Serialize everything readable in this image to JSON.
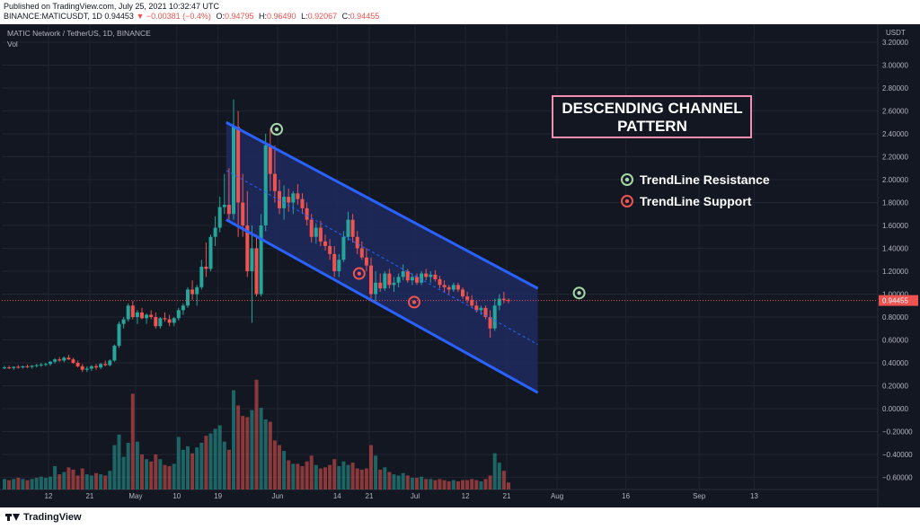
{
  "header": {
    "published": "Published on TradingView.com, July 25, 2021 10:32:47 UTC",
    "symbol_line": "BINANCE:MATICUSDT, 1D",
    "last": "0.94453",
    "change": "−0.00381 (−0.4%)",
    "o_label": "O:",
    "o_value": "0.94795",
    "h_label": "H:",
    "h_value": "0.96490",
    "l_label": "L:",
    "l_value": "0.92067",
    "c_label": "C:",
    "c_value": "0.94455"
  },
  "chart_header": {
    "title": "MATIC Network / TetherUS, 1D, BINANCE",
    "vol_label": "Vol"
  },
  "footer": {
    "brand": "TradingView"
  },
  "colors": {
    "background": "#131722",
    "up": "#26a69a",
    "down": "#ef5350",
    "channel_line": "#2962ff",
    "channel_fill": "#1e2a5e",
    "grid": "#1f2433",
    "axis_text": "#b2b5be",
    "price_tag": "#ef5350",
    "resistance_marker": "#a5d6a7",
    "support_marker": "#ef5350",
    "annotation_text": "#ffffff",
    "annotation_box_border": "#f48fb1"
  },
  "chart_data": {
    "type": "candlestick",
    "title": "MATIC Network / TetherUS, 1D, BINANCE",
    "currency": "USDT",
    "ylim": [
      -0.6,
      3.2
    ],
    "price_ticks": [
      "3.20000",
      "3.00000",
      "2.80000",
      "2.60000",
      "2.40000",
      "2.20000",
      "2.00000",
      "1.80000",
      "1.60000",
      "1.40000",
      "1.20000",
      "1.00000",
      "0.80000",
      "0.60000",
      "0.40000",
      "0.20000",
      "0.00000",
      "−0.20000",
      "−0.40000",
      "−0.60000"
    ],
    "price_tick_values": [
      3.2,
      3.0,
      2.8,
      2.6,
      2.4,
      2.2,
      2.0,
      1.8,
      1.6,
      1.4,
      1.2,
      1.0,
      0.8,
      0.6,
      0.4,
      0.2,
      0.0,
      -0.2,
      -0.4,
      -0.6
    ],
    "current_price": {
      "value": 0.94455,
      "label": "0.94455"
    },
    "time_ticks": [
      {
        "label": "12",
        "day": 0
      },
      {
        "label": "21",
        "day": 9
      },
      {
        "label": "May",
        "day": 19
      },
      {
        "label": "10",
        "day": 28
      },
      {
        "label": "19",
        "day": 37
      },
      {
        "label": "Jun",
        "day": 50
      },
      {
        "label": "14",
        "day": 63
      },
      {
        "label": "21",
        "day": 70
      },
      {
        "label": "Jul",
        "day": 80
      },
      {
        "label": "12",
        "day": 91
      },
      {
        "label": "21",
        "day": 100
      },
      {
        "label": "Aug",
        "day": 111
      },
      {
        "label": "16",
        "day": 126
      },
      {
        "label": "Sep",
        "day": 142
      },
      {
        "label": "13",
        "day": 154
      }
    ],
    "candles": [
      {
        "o": 0.36,
        "h": 0.375,
        "l": 0.345,
        "c": 0.36,
        "v": 0.09
      },
      {
        "o": 0.36,
        "h": 0.375,
        "l": 0.345,
        "c": 0.355,
        "v": 0.08
      },
      {
        "o": 0.355,
        "h": 0.37,
        "l": 0.34,
        "c": 0.365,
        "v": 0.09
      },
      {
        "o": 0.365,
        "h": 0.38,
        "l": 0.35,
        "c": 0.36,
        "v": 0.1
      },
      {
        "o": 0.36,
        "h": 0.375,
        "l": 0.35,
        "c": 0.37,
        "v": 0.09
      },
      {
        "o": 0.37,
        "h": 0.385,
        "l": 0.355,
        "c": 0.365,
        "v": 0.08
      },
      {
        "o": 0.365,
        "h": 0.38,
        "l": 0.35,
        "c": 0.375,
        "v": 0.09
      },
      {
        "o": 0.375,
        "h": 0.39,
        "l": 0.36,
        "c": 0.38,
        "v": 0.1
      },
      {
        "o": 0.38,
        "h": 0.4,
        "l": 0.365,
        "c": 0.385,
        "v": 0.11
      },
      {
        "o": 0.385,
        "h": 0.4,
        "l": 0.37,
        "c": 0.39,
        "v": 0.1
      },
      {
        "o": 0.39,
        "h": 0.415,
        "l": 0.375,
        "c": 0.41,
        "v": 0.11
      },
      {
        "o": 0.41,
        "h": 0.44,
        "l": 0.395,
        "c": 0.43,
        "v": 0.2
      },
      {
        "o": 0.43,
        "h": 0.45,
        "l": 0.41,
        "c": 0.42,
        "v": 0.13
      },
      {
        "o": 0.42,
        "h": 0.455,
        "l": 0.405,
        "c": 0.445,
        "v": 0.15
      },
      {
        "o": 0.445,
        "h": 0.47,
        "l": 0.425,
        "c": 0.43,
        "v": 0.19
      },
      {
        "o": 0.43,
        "h": 0.445,
        "l": 0.39,
        "c": 0.4,
        "v": 0.17
      },
      {
        "o": 0.4,
        "h": 0.42,
        "l": 0.36,
        "c": 0.37,
        "v": 0.12
      },
      {
        "o": 0.37,
        "h": 0.39,
        "l": 0.32,
        "c": 0.34,
        "v": 0.18
      },
      {
        "o": 0.34,
        "h": 0.37,
        "l": 0.32,
        "c": 0.35,
        "v": 0.13
      },
      {
        "o": 0.35,
        "h": 0.38,
        "l": 0.33,
        "c": 0.37,
        "v": 0.12
      },
      {
        "o": 0.37,
        "h": 0.39,
        "l": 0.34,
        "c": 0.36,
        "v": 0.14
      },
      {
        "o": 0.36,
        "h": 0.4,
        "l": 0.345,
        "c": 0.39,
        "v": 0.13
      },
      {
        "o": 0.39,
        "h": 0.42,
        "l": 0.37,
        "c": 0.38,
        "v": 0.12
      },
      {
        "o": 0.38,
        "h": 0.43,
        "l": 0.37,
        "c": 0.42,
        "v": 0.16
      },
      {
        "o": 0.42,
        "h": 0.56,
        "l": 0.41,
        "c": 0.55,
        "v": 0.38
      },
      {
        "o": 0.55,
        "h": 0.76,
        "l": 0.53,
        "c": 0.74,
        "v": 0.47
      },
      {
        "o": 0.74,
        "h": 0.8,
        "l": 0.7,
        "c": 0.78,
        "v": 0.28
      },
      {
        "o": 0.78,
        "h": 0.92,
        "l": 0.76,
        "c": 0.9,
        "v": 0.4
      },
      {
        "o": 0.9,
        "h": 0.94,
        "l": 0.78,
        "c": 0.8,
        "v": 0.82
      },
      {
        "o": 0.8,
        "h": 0.86,
        "l": 0.74,
        "c": 0.84,
        "v": 0.41
      },
      {
        "o": 0.84,
        "h": 0.88,
        "l": 0.78,
        "c": 0.79,
        "v": 0.3
      },
      {
        "o": 0.79,
        "h": 0.83,
        "l": 0.74,
        "c": 0.82,
        "v": 0.26
      },
      {
        "o": 0.82,
        "h": 0.86,
        "l": 0.78,
        "c": 0.8,
        "v": 0.24
      },
      {
        "o": 0.8,
        "h": 0.84,
        "l": 0.7,
        "c": 0.72,
        "v": 0.3
      },
      {
        "o": 0.72,
        "h": 0.8,
        "l": 0.7,
        "c": 0.79,
        "v": 0.26
      },
      {
        "o": 0.79,
        "h": 0.84,
        "l": 0.76,
        "c": 0.78,
        "v": 0.21
      },
      {
        "o": 0.78,
        "h": 0.82,
        "l": 0.72,
        "c": 0.75,
        "v": 0.2
      },
      {
        "o": 0.75,
        "h": 0.8,
        "l": 0.72,
        "c": 0.79,
        "v": 0.22
      },
      {
        "o": 0.79,
        "h": 0.88,
        "l": 0.77,
        "c": 0.86,
        "v": 0.45
      },
      {
        "o": 0.86,
        "h": 0.92,
        "l": 0.82,
        "c": 0.9,
        "v": 0.34
      },
      {
        "o": 0.9,
        "h": 1.06,
        "l": 0.88,
        "c": 1.04,
        "v": 0.37
      },
      {
        "o": 1.04,
        "h": 1.12,
        "l": 0.95,
        "c": 1.0,
        "v": 0.31
      },
      {
        "o": 1.0,
        "h": 1.08,
        "l": 0.9,
        "c": 1.06,
        "v": 0.36
      },
      {
        "o": 1.06,
        "h": 1.3,
        "l": 1.04,
        "c": 1.24,
        "v": 0.4
      },
      {
        "o": 1.24,
        "h": 1.45,
        "l": 1.15,
        "c": 1.22,
        "v": 0.46
      },
      {
        "o": 1.22,
        "h": 1.52,
        "l": 1.2,
        "c": 1.5,
        "v": 0.48
      },
      {
        "o": 1.5,
        "h": 1.68,
        "l": 1.42,
        "c": 1.58,
        "v": 0.52
      },
      {
        "o": 1.58,
        "h": 1.85,
        "l": 1.54,
        "c": 1.76,
        "v": 0.55
      },
      {
        "o": 1.76,
        "h": 2.05,
        "l": 1.7,
        "c": 1.78,
        "v": 0.41
      },
      {
        "o": 1.78,
        "h": 2.1,
        "l": 1.65,
        "c": 1.7,
        "v": 0.34
      },
      {
        "o": 1.7,
        "h": 2.7,
        "l": 1.65,
        "c": 2.46,
        "v": 0.85
      },
      {
        "o": 2.46,
        "h": 2.6,
        "l": 1.5,
        "c": 1.8,
        "v": 0.72
      },
      {
        "o": 1.8,
        "h": 2.05,
        "l": 1.5,
        "c": 1.6,
        "v": 0.63
      },
      {
        "o": 1.6,
        "h": 1.9,
        "l": 1.15,
        "c": 1.2,
        "v": 0.62
      },
      {
        "o": 1.2,
        "h": 1.6,
        "l": 0.75,
        "c": 1.4,
        "v": 0.68
      },
      {
        "o": 1.4,
        "h": 1.52,
        "l": 0.98,
        "c": 1.0,
        "v": 0.94
      },
      {
        "o": 1.0,
        "h": 1.7,
        "l": 0.98,
        "c": 1.6,
        "v": 0.7
      },
      {
        "o": 1.6,
        "h": 2.4,
        "l": 1.55,
        "c": 2.3,
        "v": 0.6
      },
      {
        "o": 2.3,
        "h": 2.45,
        "l": 1.9,
        "c": 2.05,
        "v": 0.58
      },
      {
        "o": 2.05,
        "h": 2.3,
        "l": 1.8,
        "c": 1.9,
        "v": 0.42
      },
      {
        "o": 1.9,
        "h": 2.0,
        "l": 1.7,
        "c": 1.75,
        "v": 0.38
      },
      {
        "o": 1.75,
        "h": 1.95,
        "l": 1.65,
        "c": 1.85,
        "v": 0.33
      },
      {
        "o": 1.85,
        "h": 1.92,
        "l": 1.72,
        "c": 1.8,
        "v": 0.25
      },
      {
        "o": 1.8,
        "h": 1.9,
        "l": 1.7,
        "c": 1.88,
        "v": 0.22
      },
      {
        "o": 1.88,
        "h": 1.96,
        "l": 1.78,
        "c": 1.83,
        "v": 0.22
      },
      {
        "o": 1.83,
        "h": 1.88,
        "l": 1.7,
        "c": 1.75,
        "v": 0.2
      },
      {
        "o": 1.75,
        "h": 1.8,
        "l": 1.6,
        "c": 1.65,
        "v": 0.24
      },
      {
        "o": 1.65,
        "h": 1.7,
        "l": 1.45,
        "c": 1.5,
        "v": 0.29
      },
      {
        "o": 1.5,
        "h": 1.62,
        "l": 1.44,
        "c": 1.58,
        "v": 0.21
      },
      {
        "o": 1.58,
        "h": 1.64,
        "l": 1.42,
        "c": 1.46,
        "v": 0.18
      },
      {
        "o": 1.46,
        "h": 1.52,
        "l": 1.38,
        "c": 1.42,
        "v": 0.19
      },
      {
        "o": 1.42,
        "h": 1.48,
        "l": 1.3,
        "c": 1.35,
        "v": 0.21
      },
      {
        "o": 1.35,
        "h": 1.42,
        "l": 1.15,
        "c": 1.2,
        "v": 0.26
      },
      {
        "o": 1.2,
        "h": 1.35,
        "l": 1.15,
        "c": 1.3,
        "v": 0.2
      },
      {
        "o": 1.3,
        "h": 1.55,
        "l": 1.28,
        "c": 1.5,
        "v": 0.24
      },
      {
        "o": 1.5,
        "h": 1.72,
        "l": 1.47,
        "c": 1.65,
        "v": 0.21
      },
      {
        "o": 1.65,
        "h": 1.7,
        "l": 1.45,
        "c": 1.5,
        "v": 0.23
      },
      {
        "o": 1.5,
        "h": 1.55,
        "l": 1.35,
        "c": 1.4,
        "v": 0.18
      },
      {
        "o": 1.4,
        "h": 1.46,
        "l": 1.3,
        "c": 1.32,
        "v": 0.17
      },
      {
        "o": 1.32,
        "h": 1.4,
        "l": 1.2,
        "c": 1.25,
        "v": 0.18
      },
      {
        "o": 1.25,
        "h": 1.32,
        "l": 0.95,
        "c": 1.0,
        "v": 0.38
      },
      {
        "o": 1.0,
        "h": 1.2,
        "l": 0.94,
        "c": 1.1,
        "v": 0.29
      },
      {
        "o": 1.1,
        "h": 1.18,
        "l": 1.02,
        "c": 1.05,
        "v": 0.17
      },
      {
        "o": 1.05,
        "h": 1.2,
        "l": 1.03,
        "c": 1.18,
        "v": 0.19
      },
      {
        "o": 1.18,
        "h": 1.22,
        "l": 1.05,
        "c": 1.08,
        "v": 0.15
      },
      {
        "o": 1.08,
        "h": 1.15,
        "l": 1.02,
        "c": 1.1,
        "v": 0.13
      },
      {
        "o": 1.1,
        "h": 1.18,
        "l": 1.06,
        "c": 1.15,
        "v": 0.12
      },
      {
        "o": 1.15,
        "h": 1.26,
        "l": 1.12,
        "c": 1.2,
        "v": 0.14
      },
      {
        "o": 1.2,
        "h": 1.22,
        "l": 1.1,
        "c": 1.12,
        "v": 0.12
      },
      {
        "o": 1.12,
        "h": 1.18,
        "l": 1.08,
        "c": 1.15,
        "v": 0.1
      },
      {
        "o": 1.15,
        "h": 1.18,
        "l": 1.08,
        "c": 1.1,
        "v": 0.1
      },
      {
        "o": 1.1,
        "h": 1.2,
        "l": 1.08,
        "c": 1.18,
        "v": 0.11
      },
      {
        "o": 1.18,
        "h": 1.22,
        "l": 1.12,
        "c": 1.15,
        "v": 0.09
      },
      {
        "o": 1.15,
        "h": 1.2,
        "l": 1.1,
        "c": 1.17,
        "v": 0.09
      },
      {
        "o": 1.17,
        "h": 1.21,
        "l": 1.11,
        "c": 1.13,
        "v": 0.08
      },
      {
        "o": 1.13,
        "h": 1.16,
        "l": 1.05,
        "c": 1.08,
        "v": 0.09
      },
      {
        "o": 1.08,
        "h": 1.12,
        "l": 1.02,
        "c": 1.06,
        "v": 0.08
      },
      {
        "o": 1.06,
        "h": 1.08,
        "l": 1.0,
        "c": 1.04,
        "v": 0.07
      },
      {
        "o": 1.04,
        "h": 1.1,
        "l": 1.02,
        "c": 1.08,
        "v": 0.08
      },
      {
        "o": 1.08,
        "h": 1.1,
        "l": 1.02,
        "c": 1.04,
        "v": 0.07
      },
      {
        "o": 1.04,
        "h": 1.06,
        "l": 0.96,
        "c": 0.98,
        "v": 0.08
      },
      {
        "o": 0.98,
        "h": 1.02,
        "l": 0.92,
        "c": 0.95,
        "v": 0.08
      },
      {
        "o": 0.95,
        "h": 0.99,
        "l": 0.88,
        "c": 0.9,
        "v": 0.09
      },
      {
        "o": 0.9,
        "h": 0.94,
        "l": 0.84,
        "c": 0.86,
        "v": 0.08
      },
      {
        "o": 0.86,
        "h": 0.9,
        "l": 0.82,
        "c": 0.88,
        "v": 0.07
      },
      {
        "o": 0.88,
        "h": 0.9,
        "l": 0.78,
        "c": 0.8,
        "v": 0.09
      },
      {
        "o": 0.8,
        "h": 0.86,
        "l": 0.62,
        "c": 0.7,
        "v": 0.12
      },
      {
        "o": 0.7,
        "h": 0.96,
        "l": 0.68,
        "c": 0.9,
        "v": 0.31
      },
      {
        "o": 0.9,
        "h": 1.0,
        "l": 0.86,
        "c": 0.96,
        "v": 0.23
      },
      {
        "o": 0.96,
        "h": 1.02,
        "l": 0.92,
        "c": 0.948,
        "v": 0.16
      },
      {
        "o": 0.948,
        "h": 0.965,
        "l": 0.921,
        "c": 0.945,
        "v": 0.06
      }
    ],
    "channel": {
      "upper": [
        [
          58,
          2.5
        ],
        [
          126,
          1.05
        ]
      ],
      "lower": [
        [
          58,
          1.65
        ],
        [
          126,
          0.14
        ]
      ],
      "mid": [
        [
          58,
          2.08
        ],
        [
          126,
          0.56
        ]
      ]
    },
    "annotations": {
      "box_lines": [
        "DESCENDING CHANNEL",
        "PATTERN"
      ],
      "legend": [
        {
          "label": "TrendLine Resistance",
          "color": "#a5d6a7"
        },
        {
          "label": "TrendLine Support",
          "color": "#ef5350"
        }
      ],
      "markers": [
        {
          "kind": "resistance",
          "day": 60,
          "price": 2.44
        },
        {
          "kind": "support",
          "day": 78,
          "price": 1.18
        },
        {
          "kind": "support",
          "day": 90,
          "price": 0.93
        },
        {
          "kind": "resistance",
          "day": 126,
          "price": 1.01
        }
      ]
    }
  }
}
